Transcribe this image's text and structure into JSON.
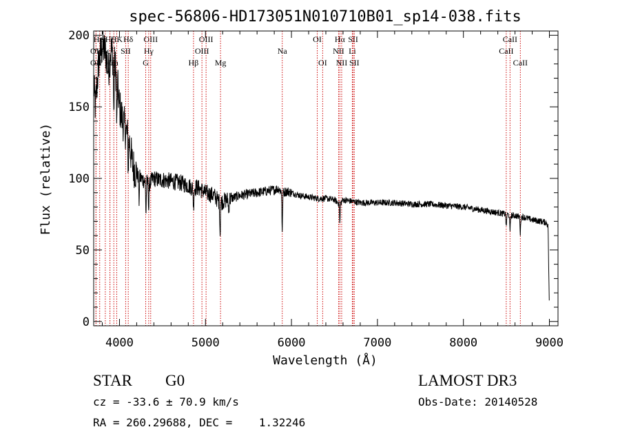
{
  "chart_data": {
    "type": "line",
    "title": "spec-56806-HD173051N010710B01_sp14-038.fits",
    "xlabel": "Wavelength (Å)",
    "ylabel": "Flux (relative)",
    "xlim": [
      3700,
      9100
    ],
    "ylim": [
      -3,
      203
    ],
    "xticks": [
      4000,
      5000,
      6000,
      7000,
      8000,
      9000
    ],
    "yticks": [
      0,
      50,
      100,
      150,
      200
    ],
    "grid": false,
    "line_color": "#000000",
    "marker_color": "#cc0000",
    "spectrum_anchors": {
      "x": [
        3700,
        3720,
        3760,
        3800,
        3840,
        3870,
        3900,
        3940,
        3970,
        4000,
        4040,
        4080,
        4110,
        4150,
        4200,
        4250,
        4300,
        4340,
        4400,
        4450,
        4500,
        4600,
        4700,
        4800,
        4860,
        4900,
        5000,
        5100,
        5170,
        5200,
        5300,
        5400,
        5500,
        5600,
        5700,
        5800,
        5850,
        5893,
        5950,
        6000,
        6100,
        6200,
        6300,
        6400,
        6500,
        6563,
        6600,
        6700,
        6800,
        7000,
        7200,
        7400,
        7600,
        7800,
        8000,
        8200,
        8400,
        8498,
        8542,
        8600,
        8662,
        8700,
        8800,
        8900,
        8970,
        8985,
        9000
      ],
      "y": [
        165,
        150,
        182,
        192,
        188,
        175,
        190,
        182,
        170,
        150,
        140,
        132,
        128,
        110,
        103,
        100,
        98,
        96,
        100,
        99,
        99,
        98,
        97,
        95,
        93,
        94,
        90,
        88,
        83,
        84,
        86,
        88,
        89,
        90,
        91,
        92,
        93,
        90,
        91,
        90,
        88,
        87,
        86,
        86,
        85,
        82,
        85,
        84,
        83,
        83,
        83,
        82,
        82,
        81,
        80,
        78,
        76,
        75,
        74,
        74,
        73,
        73,
        71,
        70,
        69,
        66,
        5
      ]
    },
    "absorption_dips": [
      {
        "x": 3934,
        "depth": 40
      },
      {
        "x": 3969,
        "depth": 35
      },
      {
        "x": 4102,
        "depth": 22
      },
      {
        "x": 4227,
        "depth": 18
      },
      {
        "x": 4308,
        "depth": 22
      },
      {
        "x": 4340,
        "depth": 18
      },
      {
        "x": 4861,
        "depth": 14
      },
      {
        "x": 5170,
        "depth": 22
      },
      {
        "x": 5270,
        "depth": 10
      },
      {
        "x": 5893,
        "depth": 28
      },
      {
        "x": 6563,
        "depth": 14
      },
      {
        "x": 8498,
        "depth": 10
      },
      {
        "x": 8542,
        "depth": 12
      },
      {
        "x": 8662,
        "depth": 12
      }
    ],
    "line_markers": [
      {
        "label": "OII",
        "x": 3727,
        "row": 3
      },
      {
        "label": "OII",
        "x": 3727,
        "row": 2
      },
      {
        "label": "HeI",
        "x": 3770,
        "row": 1
      },
      {
        "label": "Hε",
        "x": 3835,
        "row": 2
      },
      {
        "label": "Hζ",
        "x": 3889,
        "row": 1
      },
      {
        "label": "Hη",
        "x": 3889,
        "row": 3
      },
      {
        "label": "Ca",
        "x": 3934,
        "row": 3
      },
      {
        "label": "HK",
        "x": 3968,
        "row": 1
      },
      {
        "label": "Hδ",
        "x": 4102,
        "row": 1
      },
      {
        "label": "SII",
        "x": 4072,
        "row": 2
      },
      {
        "label": "OIII",
        "x": 4363,
        "row": 1
      },
      {
        "label": "Hγ",
        "x": 4340,
        "row": 2
      },
      {
        "label": "G",
        "x": 4305,
        "row": 3
      },
      {
        "label": "Hβ",
        "x": 4861,
        "row": 3
      },
      {
        "label": "OIII",
        "x": 5007,
        "row": 1
      },
      {
        "label": "OIII",
        "x": 4959,
        "row": 2
      },
      {
        "label": "Mg",
        "x": 5175,
        "row": 3
      },
      {
        "label": "Na",
        "x": 5893,
        "row": 2
      },
      {
        "label": "OI",
        "x": 6300,
        "row": 1
      },
      {
        "label": "OI",
        "x": 6363,
        "row": 3
      },
      {
        "label": "Hα",
        "x": 6563,
        "row": 1
      },
      {
        "label": "NII",
        "x": 6548,
        "row": 2
      },
      {
        "label": "NII",
        "x": 6584,
        "row": 3
      },
      {
        "label": "SII",
        "x": 6717,
        "row": 1
      },
      {
        "label": "Li",
        "x": 6708,
        "row": 2
      },
      {
        "label": "SII",
        "x": 6731,
        "row": 3
      },
      {
        "label": "CaII",
        "x": 8542,
        "row": 1
      },
      {
        "label": "CaII",
        "x": 8498,
        "row": 2
      },
      {
        "label": "CaII",
        "x": 8662,
        "row": 3
      }
    ]
  },
  "info": {
    "class": "STAR",
    "subclass": "G0",
    "survey": "LAMOST DR3",
    "cz": "cz = -33.6 ± 70.9 km/s",
    "obs_date": "Obs-Date: 20140528",
    "radec": "RA = 260.29688, DEC =    1.32246"
  }
}
